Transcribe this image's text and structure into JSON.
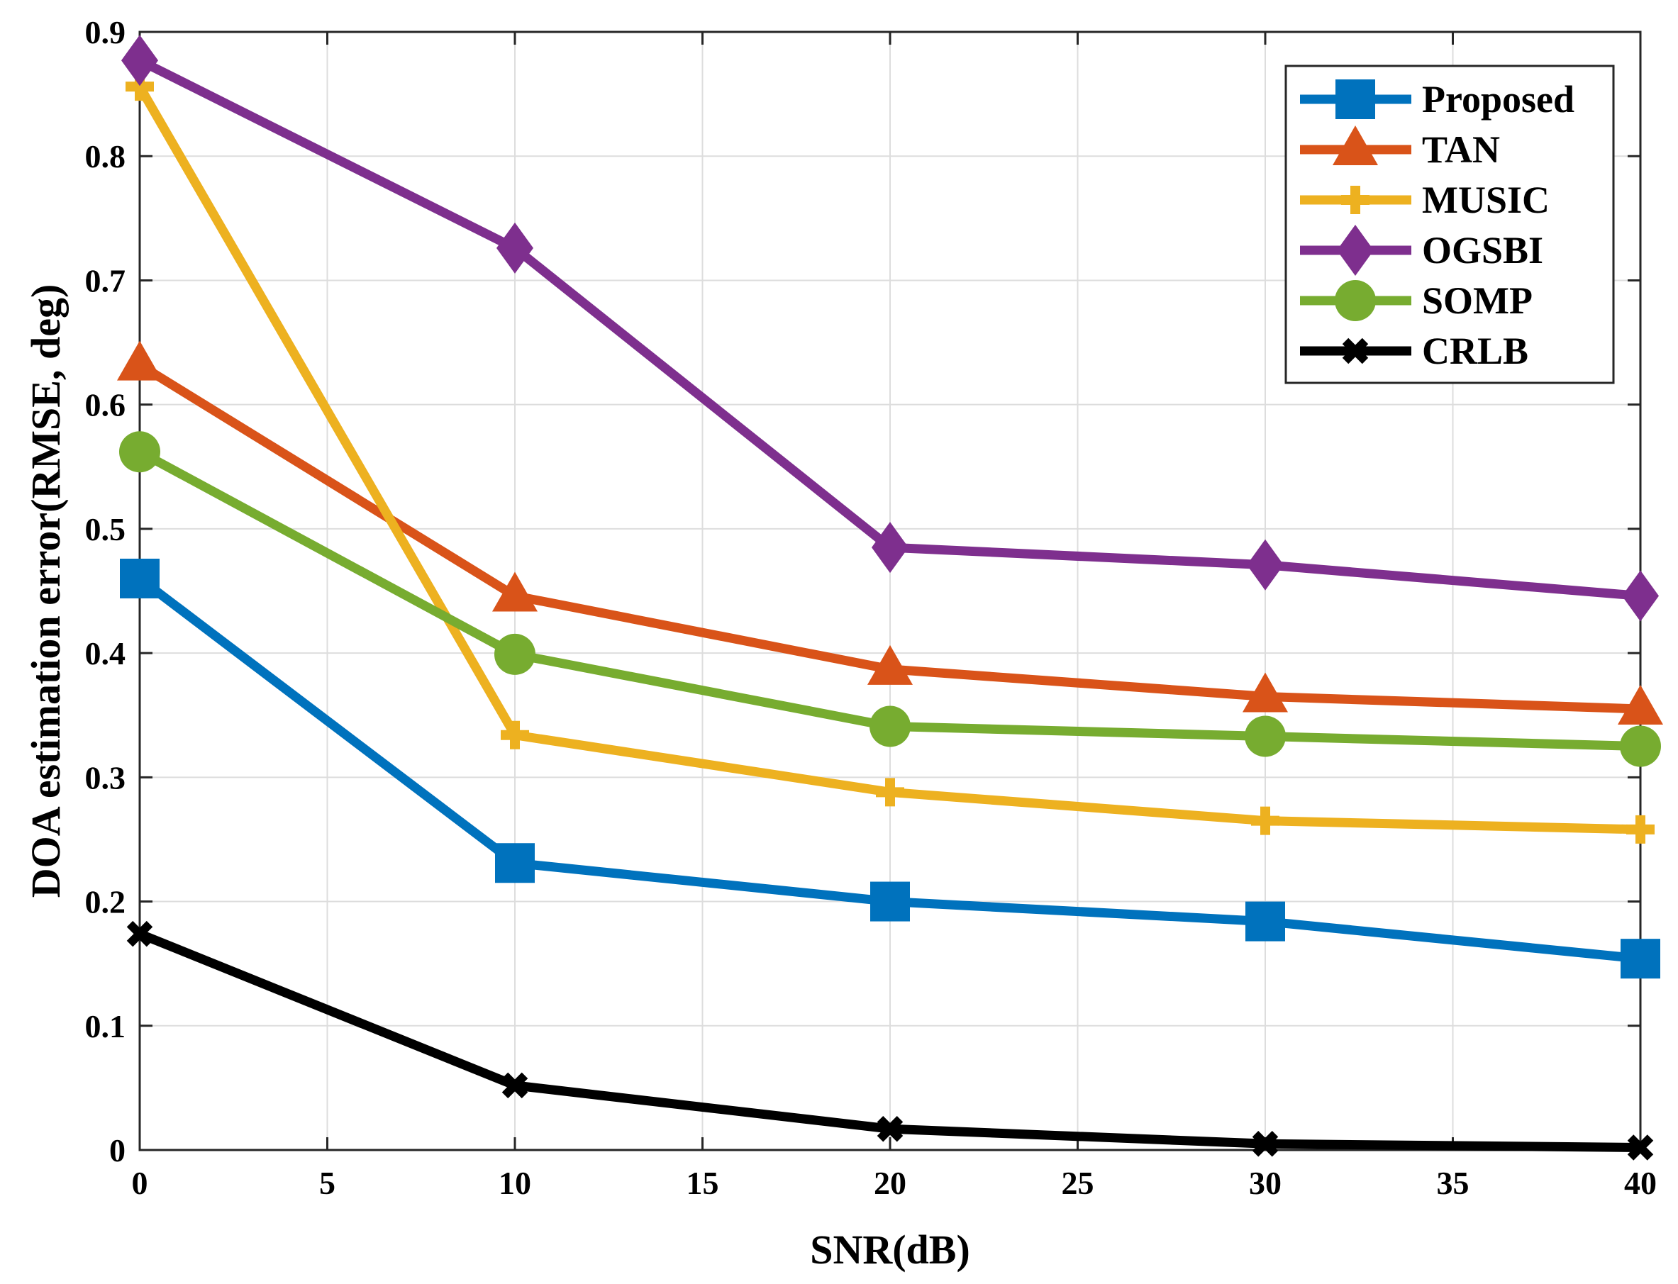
{
  "chart_data": {
    "type": "line",
    "title": "",
    "xlabel": "SNR(dB)",
    "ylabel": "DOA estimation error(RMSE, deg)",
    "xlim": [
      0,
      40
    ],
    "ylim": [
      0,
      0.9
    ],
    "xticks": [
      0,
      5,
      10,
      15,
      20,
      25,
      30,
      35,
      40
    ],
    "xtick_labels": [
      "0",
      "5",
      "10",
      "15",
      "20",
      "25",
      "30",
      "35",
      "40"
    ],
    "yticks": [
      0,
      0.1,
      0.2,
      0.3,
      0.4,
      0.5,
      0.6,
      0.7,
      0.8,
      0.9
    ],
    "ytick_labels": [
      "0",
      "0.1",
      "0.2",
      "0.3",
      "0.4",
      "0.5",
      "0.6",
      "0.7",
      "0.8",
      "0.9"
    ],
    "grid": true,
    "legend_position": "top-right",
    "x": [
      0,
      10,
      20,
      30,
      40
    ],
    "series": [
      {
        "name": "Proposed",
        "color": "#0072BD",
        "marker": "square",
        "values": [
          0.46,
          0.231,
          0.2,
          0.184,
          0.154
        ]
      },
      {
        "name": "TAN",
        "color": "#D95319",
        "marker": "triangle",
        "values": [
          0.632,
          0.446,
          0.387,
          0.365,
          0.355
        ]
      },
      {
        "name": "MUSIC",
        "color": "#EDB120",
        "marker": "plus",
        "values": [
          0.856,
          0.334,
          0.288,
          0.265,
          0.258
        ]
      },
      {
        "name": "OGSBI",
        "color": "#7E2F8E",
        "marker": "diamond",
        "values": [
          0.877,
          0.726,
          0.485,
          0.471,
          0.446
        ]
      },
      {
        "name": "SOMP",
        "color": "#77AC30",
        "marker": "circle",
        "values": [
          0.562,
          0.399,
          0.341,
          0.333,
          0.325
        ]
      },
      {
        "name": "CRLB",
        "color": "#000000",
        "marker": "x",
        "values": [
          0.174,
          0.052,
          0.017,
          0.005,
          0.002
        ]
      }
    ]
  }
}
